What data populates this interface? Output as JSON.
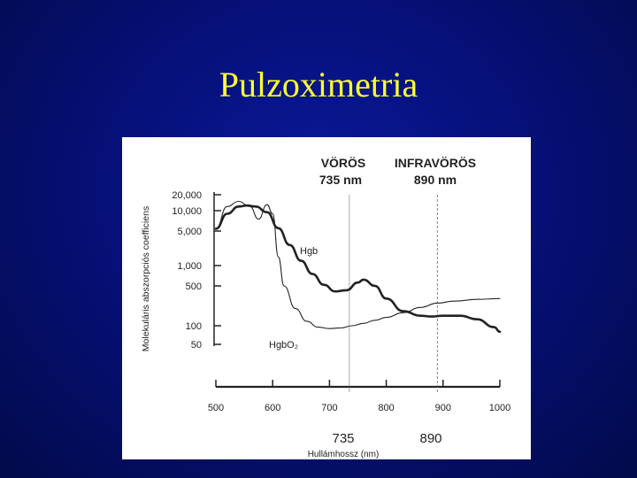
{
  "slide": {
    "title": "Pulzoximetria"
  },
  "colors": {
    "background": "#06107a",
    "title": "#ffff33",
    "ink": "#222222"
  },
  "chart_data": {
    "type": "line",
    "title": "",
    "xlabel": "Hullámhossz (nm)",
    "ylabel": "Molekuláris abszorpciós coefficiens",
    "xlim": [
      500,
      1000
    ],
    "x_ticks": [
      500,
      600,
      700,
      800,
      900,
      1000
    ],
    "x_tick_labels": [
      "500",
      "600",
      "700",
      "800",
      "900",
      "1000"
    ],
    "y_tick_labels": [
      "20,000",
      "10,000",
      "5,000",
      "1,000",
      "500",
      "100",
      "50"
    ],
    "y_tick_values": [
      20000,
      10000,
      5000,
      1000,
      500,
      100,
      50
    ],
    "y_scale": "log",
    "grid": false,
    "annotations": {
      "red_label": "VÖRÖS",
      "red_nm": "735 nm",
      "ir_label": "INFRAVÖRÖS",
      "ir_nm": "890 nm",
      "bottom_735": "735",
      "bottom_890": "890"
    },
    "reference_lines": [
      735,
      890
    ],
    "series": [
      {
        "name": "Hgb",
        "style": "thick",
        "x": [
          500,
          520,
          540,
          555,
          570,
          590,
          610,
          630,
          650,
          670,
          690,
          710,
          730,
          750,
          760,
          780,
          800,
          830,
          860,
          880,
          900,
          930,
          960,
          990,
          1000
        ],
        "y": [
          5400,
          9000,
          12000,
          12500,
          12000,
          9500,
          5500,
          2600,
          1250,
          750,
          520,
          400,
          420,
          560,
          620,
          500,
          300,
          180,
          150,
          145,
          150,
          150,
          130,
          95,
          80
        ]
      },
      {
        "name": "HgbO₂",
        "style": "thin",
        "x": [
          500,
          520,
          540,
          560,
          575,
          590,
          600,
          610,
          620,
          640,
          660,
          680,
          700,
          720,
          740,
          760,
          780,
          800,
          830,
          860,
          890,
          920,
          960,
          1000
        ],
        "y": [
          5400,
          12000,
          15000,
          12000,
          7500,
          13000,
          9000,
          1500,
          500,
          200,
          120,
          95,
          90,
          92,
          100,
          110,
          125,
          140,
          170,
          210,
          250,
          270,
          290,
          300
        ]
      }
    ]
  }
}
